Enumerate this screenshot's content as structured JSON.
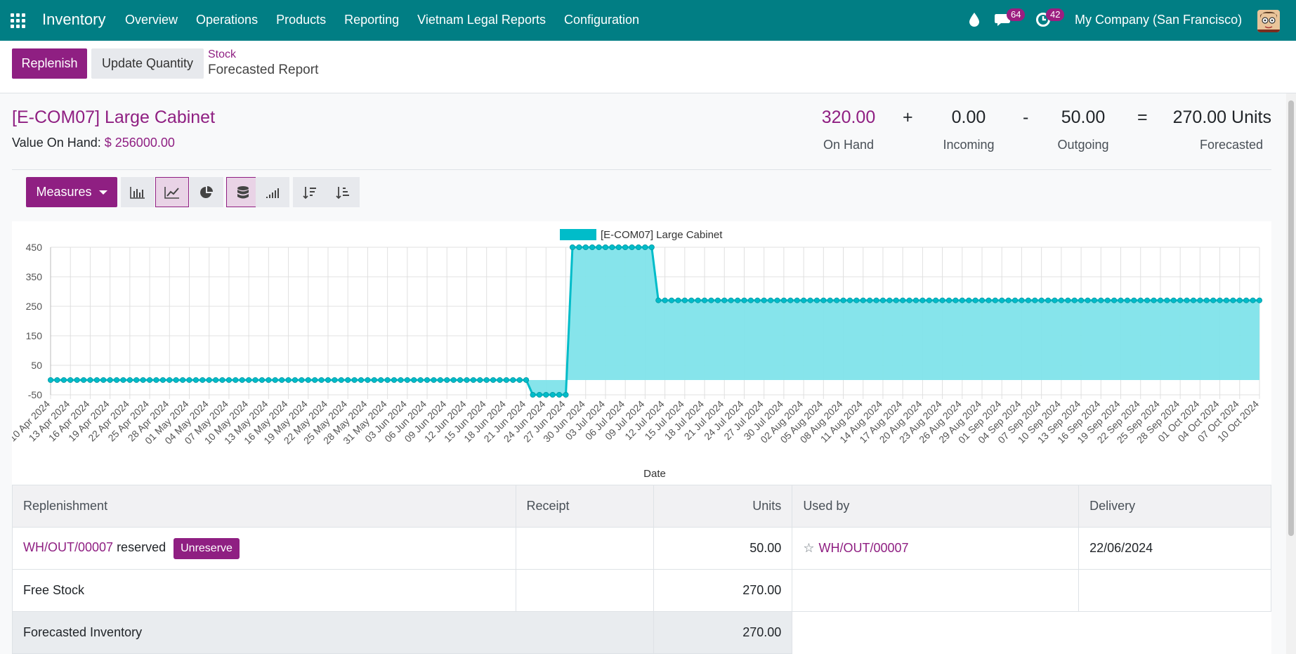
{
  "nav": {
    "brand": "Inventory",
    "menu": [
      "Overview",
      "Operations",
      "Products",
      "Reporting",
      "Vietnam Legal Reports",
      "Configuration"
    ],
    "messages_count": "64",
    "activities_count": "42",
    "company": "My Company (San Francisco)"
  },
  "control": {
    "replenish": "Replenish",
    "update_quantity": "Update Quantity",
    "breadcrumb_parent": "Stock",
    "breadcrumb_current": "Forecasted Report"
  },
  "product": {
    "title": "[E-COM07] Large Cabinet",
    "value_label": "Value On Hand:",
    "value": "$ 256000.00"
  },
  "stats": {
    "on_hand": "320.00",
    "on_hand_label": "On Hand",
    "plus": "+",
    "incoming": "0.00",
    "incoming_label": "Incoming",
    "minus": "-",
    "outgoing": "50.00",
    "outgoing_label": "Outgoing",
    "equals": "=",
    "forecasted": "270.00 Units",
    "forecasted_label": "Forecasted"
  },
  "toolbar": {
    "measures": "Measures",
    "accent": "#8f1f82"
  },
  "chart_data": {
    "type": "area",
    "legend": "[E-COM07] Large Cabinet",
    "xlabel": "Date",
    "ylabel": "",
    "ylim": [
      -50,
      450
    ],
    "yticks": [
      450,
      350,
      250,
      150,
      50,
      -50
    ],
    "x_tick_labels": [
      "10 Apr 2024",
      "13 Apr 2024",
      "16 Apr 2024",
      "19 Apr 2024",
      "22 Apr 2024",
      "25 Apr 2024",
      "28 Apr 2024",
      "01 May 2024",
      "04 May 2024",
      "07 May 2024",
      "10 May 2024",
      "13 May 2024",
      "16 May 2024",
      "19 May 2024",
      "22 May 2024",
      "25 May 2024",
      "28 May 2024",
      "31 May 2024",
      "03 Jun 2024",
      "06 Jun 2024",
      "09 Jun 2024",
      "12 Jun 2024",
      "15 Jun 2024",
      "18 Jun 2024",
      "21 Jun 2024",
      "24 Jun 2024",
      "27 Jun 2024",
      "30 Jun 2024",
      "03 Jul 2024",
      "06 Jul 2024",
      "09 Jul 2024",
      "12 Jul 2024",
      "15 Jul 2024",
      "18 Jul 2024",
      "21 Jul 2024",
      "24 Jul 2024",
      "27 Jul 2024",
      "30 Jul 2024",
      "02 Aug 2024",
      "05 Aug 2024",
      "08 Aug 2024",
      "11 Aug 2024",
      "14 Aug 2024",
      "17 Aug 2024",
      "20 Aug 2024",
      "23 Aug 2024",
      "26 Aug 2024",
      "29 Aug 2024",
      "01 Sep 2024",
      "04 Sep 2024",
      "07 Sep 2024",
      "10 Sep 2024",
      "13 Sep 2024",
      "16 Sep 2024",
      "19 Sep 2024",
      "22 Sep 2024",
      "25 Sep 2024",
      "28 Sep 2024",
      "01 Oct 2024",
      "04 Oct 2024",
      "07 Oct 2024",
      "10 Oct 2024"
    ],
    "segments": [
      {
        "from": "10 Apr 2024",
        "to": "21 Jun 2024",
        "value": 0
      },
      {
        "from": "22 Jun 2024",
        "to": "27 Jun 2024",
        "value": -50
      },
      {
        "from": "28 Jun 2024",
        "to": "10 Jul 2024",
        "value": 450
      },
      {
        "from": "11 Jul 2024",
        "to": "10 Oct 2024",
        "value": 270
      }
    ],
    "color": "#00bcc9",
    "fill": "#7fe3ea",
    "grid": true,
    "legend_position": "top-center"
  },
  "table": {
    "headers": [
      "Replenishment",
      "Receipt",
      "Units",
      "Used by",
      "Delivery"
    ],
    "rows": [
      {
        "replenishment": "WH/OUT/00007",
        "status": "reserved",
        "action": "Unreserve",
        "units": "50.00",
        "used_by": "WH/OUT/00007",
        "delivery": "22/06/2024"
      },
      {
        "replenishment": "Free Stock",
        "units": "270.00"
      }
    ],
    "forecast_label": "Forecasted Inventory",
    "forecast_units": "270.00"
  }
}
